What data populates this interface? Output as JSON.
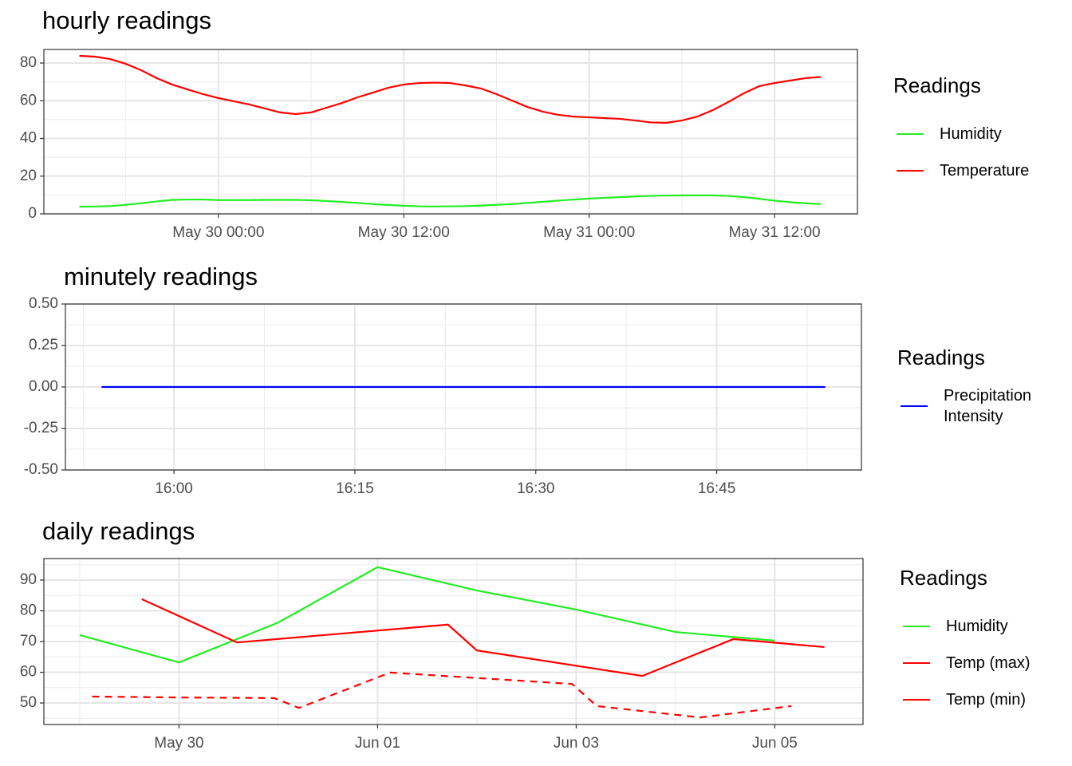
{
  "chart_data": [
    {
      "type": "line",
      "title": "hourly readings",
      "legend_title": "Readings",
      "x": [
        "May 29 15:00",
        "May 29 16:00",
        "May 29 17:00",
        "May 29 18:00",
        "May 29 19:00",
        "May 29 20:00",
        "May 29 21:00",
        "May 29 22:00",
        "May 29 23:00",
        "May 30 00:00",
        "May 30 01:00",
        "May 30 02:00",
        "May 30 03:00",
        "May 30 04:00",
        "May 30 05:00",
        "May 30 06:00",
        "May 30 07:00",
        "May 30 08:00",
        "May 30 09:00",
        "May 30 10:00",
        "May 30 11:00",
        "May 30 12:00",
        "May 30 13:00",
        "May 30 14:00",
        "May 30 15:00",
        "May 30 16:00",
        "May 30 17:00",
        "May 30 18:00",
        "May 30 19:00",
        "May 30 20:00",
        "May 30 21:00",
        "May 30 22:00",
        "May 30 23:00",
        "May 31 00:00",
        "May 31 01:00",
        "May 31 02:00",
        "May 31 03:00",
        "May 31 04:00",
        "May 31 05:00",
        "May 31 06:00",
        "May 31 07:00",
        "May 31 08:00",
        "May 31 09:00",
        "May 31 10:00",
        "May 31 11:00",
        "May 31 12:00",
        "May 31 13:00",
        "May 31 14:00",
        "May 31 15:00"
      ],
      "series": [
        {
          "name": "Humidity",
          "color": "#22ee22",
          "values": [
            3.8,
            3.9,
            4.1,
            4.8,
            5.6,
            6.6,
            7.4,
            7.6,
            7.6,
            7.3,
            7.3,
            7.3,
            7.4,
            7.4,
            7.4,
            7.2,
            6.8,
            6.3,
            5.8,
            5.2,
            4.7,
            4.3,
            4.0,
            3.9,
            4.0,
            4.1,
            4.4,
            4.8,
            5.2,
            5.8,
            6.4,
            7.0,
            7.6,
            8.1,
            8.5,
            8.9,
            9.2,
            9.5,
            9.7,
            9.8,
            9.8,
            9.8,
            9.5,
            8.9,
            8.0,
            7.0,
            6.2,
            5.6,
            5.2
          ]
        },
        {
          "name": "Temperature",
          "color": "#ff0000",
          "values": [
            83.8,
            83.4,
            82.1,
            79.6,
            76.2,
            72,
            68.6,
            66,
            63.5,
            61.4,
            59.7,
            58,
            55.9,
            53.8,
            52.9,
            53.8,
            56.3,
            58.8,
            61.8,
            64.3,
            66.9,
            68.6,
            69.4,
            69.6,
            69.4,
            68.1,
            66.5,
            63.5,
            60.1,
            56.7,
            54.2,
            52.5,
            51.6,
            51.2,
            50.8,
            50.4,
            49.5,
            48.5,
            48.3,
            49.5,
            51.6,
            55,
            59.3,
            63.9,
            67.7,
            69.4,
            70.7,
            72,
            72.6
          ]
        }
      ],
      "xlim": [
        "May 29 12:42",
        "May 31 17:22"
      ],
      "xticks": [
        "May 30 00:00",
        "May 30 12:00",
        "May 31 00:00",
        "May 31 12:00"
      ],
      "ylim": [
        0,
        87.2
      ],
      "yticks": [
        0,
        20,
        40,
        60,
        80
      ],
      "grid": true
    },
    {
      "type": "line",
      "title": "minutely readings",
      "legend_title": "Readings",
      "x": [
        "15:54",
        "15:55",
        "15:56",
        "15:57",
        "15:58",
        "15:59",
        "16:00",
        "16:01",
        "16:02",
        "16:03",
        "16:04",
        "16:05",
        "16:06",
        "16:07",
        "16:08",
        "16:09",
        "16:10",
        "16:11",
        "16:12",
        "16:13",
        "16:14",
        "16:15",
        "16:16",
        "16:17",
        "16:18",
        "16:19",
        "16:20",
        "16:21",
        "16:22",
        "16:23",
        "16:24",
        "16:25",
        "16:26",
        "16:27",
        "16:28",
        "16:29",
        "16:30",
        "16:31",
        "16:32",
        "16:33",
        "16:34",
        "16:35",
        "16:36",
        "16:37",
        "16:38",
        "16:39",
        "16:40",
        "16:41",
        "16:42",
        "16:43",
        "16:44",
        "16:45",
        "16:46",
        "16:47",
        "16:48",
        "16:49",
        "16:50",
        "16:51",
        "16:52",
        "16:53",
        "16:54"
      ],
      "series": [
        {
          "name": "Precipitation Intensity",
          "color": "#0000ff",
          "values": [
            0,
            0,
            0,
            0,
            0,
            0,
            0,
            0,
            0,
            0,
            0,
            0,
            0,
            0,
            0,
            0,
            0,
            0,
            0,
            0,
            0,
            0,
            0,
            0,
            0,
            0,
            0,
            0,
            0,
            0,
            0,
            0,
            0,
            0,
            0,
            0,
            0,
            0,
            0,
            0,
            0,
            0,
            0,
            0,
            0,
            0,
            0,
            0,
            0,
            0,
            0,
            0,
            0,
            0,
            0,
            0,
            0,
            0,
            0,
            0,
            0
          ]
        }
      ],
      "xlim": [
        "15:51",
        "16:57"
      ],
      "xticks": [
        "16:00",
        "16:15",
        "16:30",
        "16:45"
      ],
      "ylim": [
        -0.5,
        0.5
      ],
      "yticks": [
        {
          "value": -0.5,
          "label": "-0.50"
        },
        {
          "value": -0.25,
          "label": "-0.25"
        },
        {
          "value": 0,
          "label": "0.00"
        },
        {
          "value": 0.25,
          "label": "0.25"
        },
        {
          "value": 0.5,
          "label": "0.50"
        }
      ],
      "grid": true
    },
    {
      "type": "line",
      "title": "daily readings",
      "legend_title": "Readings",
      "series": [
        {
          "name": "Humidity",
          "color": "#22ee22",
          "x": [
            "May 29 00:00",
            "May 30 00:00",
            "May 31 00:00",
            "Jun 01 00:00",
            "Jun 02 00:00",
            "Jun 03 00:00",
            "Jun 04 00:00",
            "Jun 05 00:00"
          ],
          "values": [
            72.1,
            63.2,
            76.2,
            94.2,
            86.6,
            80.4,
            73.1,
            70.3
          ]
        },
        {
          "name": "Temp (max)",
          "color": "#ff0000",
          "x": [
            "May 29 15:00",
            "May 30 14:00",
            "Jun 01 17:00",
            "Jun 02 00:00",
            "Jun 03 16:00",
            "Jun 04 14:00",
            "Jun 05 12:00"
          ],
          "values": [
            83.8,
            69.7,
            75.5,
            67.1,
            58.8,
            70.8,
            68.2
          ]
        },
        {
          "name": "Temp (min)",
          "color": "#ff0000",
          "linestyle": "dashed",
          "x": [
            "May 29 03:00",
            "May 30 00:00",
            "May 30 23:00",
            "May 31 05:00",
            "Jun 01 03:00",
            "Jun 02 23:00",
            "Jun 03 05:00",
            "Jun 04 06:00",
            "Jun 05 04:00"
          ],
          "values": [
            52.1,
            51.8,
            51.6,
            48.4,
            59.9,
            56.2,
            49,
            45.3,
            49
          ]
        }
      ],
      "xlim": [
        "May 28 15:20",
        "Jun 05 21:20"
      ],
      "xticks": [
        "May 30",
        "Jun 01",
        "Jun 03",
        "Jun 05"
      ],
      "ylim": [
        43,
        97
      ],
      "yticks": [
        50,
        60,
        70,
        80,
        90
      ],
      "grid": true
    }
  ]
}
